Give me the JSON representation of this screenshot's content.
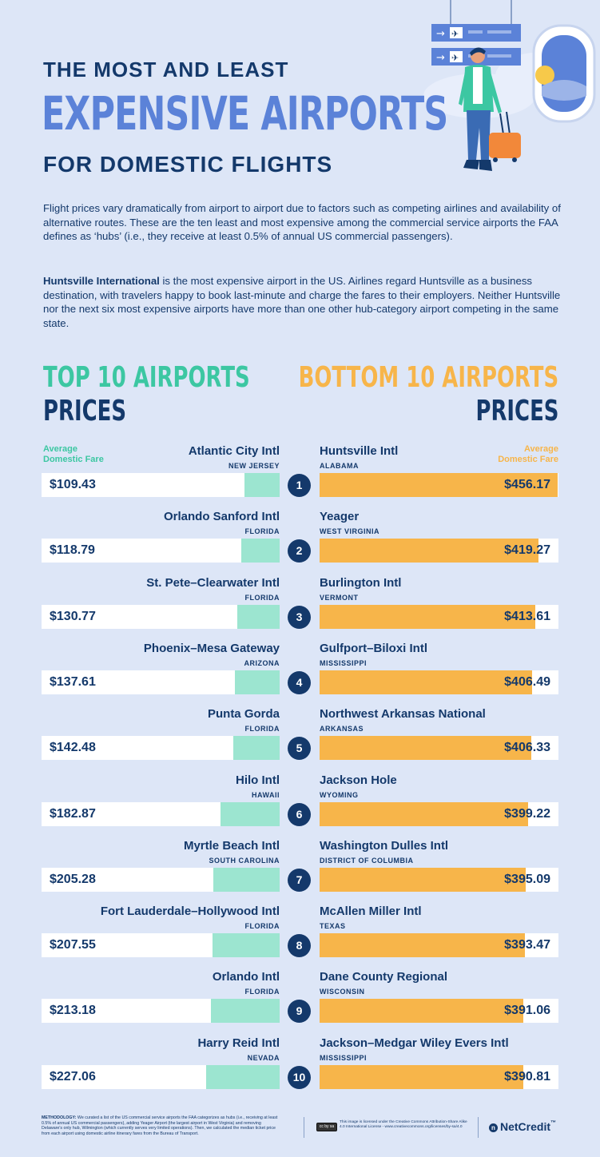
{
  "header": {
    "line1": "THE MOST AND LEAST",
    "line2": "EXPENSIVE AIRPORTS",
    "line3": "FOR DOMESTIC FLIGHTS"
  },
  "intro": {
    "p1": "Flight prices vary dramatically from airport to airport due to factors such as competing airlines and availability of alternative routes. These are the ten least and most expensive among the commercial service airports the FAA defines as ‘hubs’ (i.e., they receive at least 0.5% of annual US commercial passengers).",
    "p2_bold": "Huntsville International",
    "p2_rest": " is the most expensive airport in the US. Airlines regard Huntsville as a business destination, with travelers happy to book last-minute and charge the fares to their employers. Neither Huntsville nor the next six most expensive airports have more than one other hub-category airport competing in the same state."
  },
  "sections": {
    "left_line1": "TOP 10 AIRPORTS",
    "left_line2": "PRICES",
    "right_line1": "BOTTOM 10 AIRPORTS",
    "right_line2": "PRICES",
    "fare_label_line1": "Average",
    "fare_label_line2": "Domestic Fare"
  },
  "colors": {
    "navy": "#14396b",
    "green": "#3cc7a2",
    "light_green": "#9ce5d0",
    "orange": "#f7b54a",
    "background": "#dde6f7"
  },
  "chart_data": {
    "type": "bar",
    "title": "THE MOST AND LEAST EXPENSIVE AIRPORTS FOR DOMESTIC FLIGHTS",
    "value_label": "Average Domestic Fare",
    "scale_max": 456.17,
    "series": [
      {
        "name": "TOP 10 AIRPORTS PRICES",
        "color": "#9ce5d0",
        "items": [
          {
            "rank": "1",
            "airport": "Atlantic City Intl",
            "state": "NEW JERSEY",
            "value": 109.43,
            "label": "$109.43"
          },
          {
            "rank": "2",
            "airport": "Orlando Sanford Intl",
            "state": "FLORIDA",
            "value": 118.79,
            "label": "$118.79"
          },
          {
            "rank": "3",
            "airport": "St. Pete–Clearwater Intl",
            "state": "FLORIDA",
            "value": 130.77,
            "label": "$130.77"
          },
          {
            "rank": "4",
            "airport": "Phoenix–Mesa Gateway",
            "state": "ARIZONA",
            "value": 137.61,
            "label": "$137.61"
          },
          {
            "rank": "5",
            "airport": "Punta Gorda",
            "state": "FLORIDA",
            "value": 142.48,
            "label": "$142.48"
          },
          {
            "rank": "6",
            "airport": "Hilo Intl",
            "state": "HAWAII",
            "value": 182.87,
            "label": "$182.87"
          },
          {
            "rank": "7",
            "airport": "Myrtle Beach Intl",
            "state": "SOUTH CAROLINA",
            "value": 205.28,
            "label": "$205.28"
          },
          {
            "rank": "8",
            "airport": "Fort Lauderdale–Hollywood Intl",
            "state": "FLORIDA",
            "value": 207.55,
            "label": "$207.55"
          },
          {
            "rank": "9",
            "airport": "Orlando Intl",
            "state": "FLORIDA",
            "value": 213.18,
            "label": "$213.18"
          },
          {
            "rank": "10",
            "airport": "Harry Reid Intl",
            "state": "NEVADA",
            "value": 227.06,
            "label": "$227.06"
          }
        ]
      },
      {
        "name": "BOTTOM 10 AIRPORTS PRICES",
        "color": "#f7b54a",
        "items": [
          {
            "rank": "1",
            "airport": "Huntsville Intl",
            "state": "ALABAMA",
            "value": 456.17,
            "label": "$456.17"
          },
          {
            "rank": "2",
            "airport": "Yeager",
            "state": "WEST VIRGINIA",
            "value": 419.27,
            "label": "$419.27"
          },
          {
            "rank": "3",
            "airport": "Burlington Intl",
            "state": "VERMONT",
            "value": 413.61,
            "label": "$413.61"
          },
          {
            "rank": "4",
            "airport": "Gulfport–Biloxi Intl",
            "state": "MISSISSIPPI",
            "value": 406.49,
            "label": "$406.49"
          },
          {
            "rank": "5",
            "airport": "Northwest Arkansas National",
            "state": "ARKANSAS",
            "value": 406.33,
            "label": "$406.33"
          },
          {
            "rank": "6",
            "airport": "Jackson Hole",
            "state": "WYOMING",
            "value": 399.22,
            "label": "$399.22"
          },
          {
            "rank": "7",
            "airport": "Washington Dulles Intl",
            "state": "DISTRICT OF COLUMBIA",
            "value": 395.09,
            "label": "$395.09"
          },
          {
            "rank": "8",
            "airport": "McAllen Miller Intl",
            "state": "TEXAS",
            "value": 393.47,
            "label": "$393.47"
          },
          {
            "rank": "9",
            "airport": "Dane County Regional",
            "state": "WISCONSIN",
            "value": 391.06,
            "label": "$391.06"
          },
          {
            "rank": "10",
            "airport": "Jackson–Medgar Wiley Evers Intl",
            "state": "MISSISSIPPI",
            "value": 390.81,
            "label": "$390.81"
          }
        ]
      }
    ]
  },
  "footer": {
    "method_bold": "METHODOLOGY:",
    "method_rest": " We curated a list of the US commercial service airports the FAA categorizes as hubs (i.e., receiving at least 0.5% of annual US commercial passengers), adding Yeager Airport (the largest airport in West Virginia) and removing Delaware's only hub, Wilmington (which currently serves very limited operations). Then, we calculated the median ticket price from each airport using domestic airline itinerary fares from the Bureau of Transport.",
    "cc_badge": "cc by sa",
    "license": "This image is licensed under the Creative Commons Attribution-Share Alike 4.0 International License - www.creativecommons.org/licenses/by-sa/4.0",
    "brand": "NetCredit",
    "brand_mark": "™"
  },
  "illustration": {
    "icons": [
      "departure-board-icon",
      "airplane-icon",
      "traveler-icon",
      "suitcase-icon",
      "airplane-window-icon"
    ]
  }
}
